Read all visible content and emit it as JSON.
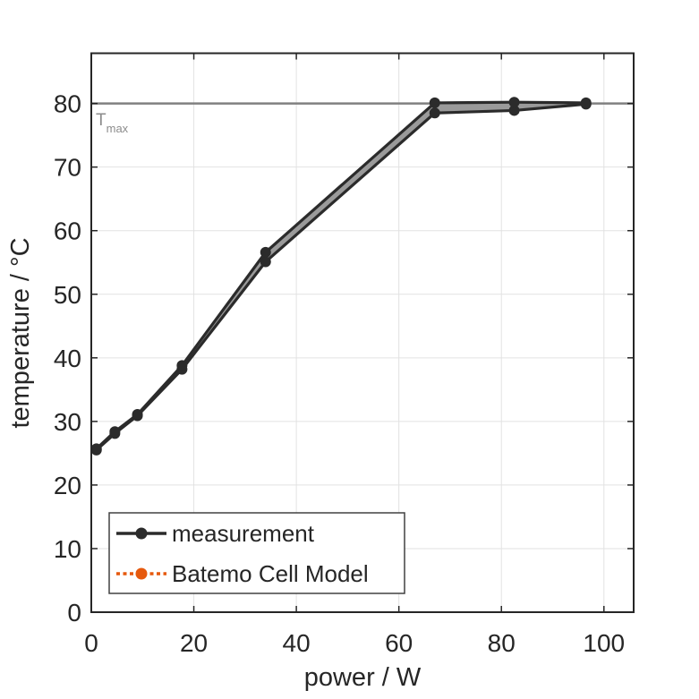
{
  "chart_data": {
    "type": "line",
    "title": "",
    "xlabel": "power / W",
    "ylabel": "temperature / °C",
    "xlim": [
      0,
      105.8
    ],
    "ylim": [
      0,
      87.9
    ],
    "xticks": [
      0,
      20,
      40,
      60,
      80,
      100
    ],
    "yticks": [
      0,
      10,
      20,
      30,
      40,
      50,
      60,
      70,
      80
    ],
    "grid": true,
    "x": [
      1,
      4.6,
      9,
      17.7,
      34,
      67,
      82.5,
      96.5
    ],
    "series": [
      {
        "name": "measurement",
        "values": [
          25.7,
          28.4,
          31.1,
          38.8,
          56.6,
          80.1,
          80.2,
          80.1
        ],
        "color": "#2b2b2b",
        "line": "solid",
        "marker": "circle"
      },
      {
        "name": "Batemo Cell Model",
        "values": [
          25.5,
          28.1,
          30.9,
          38.2,
          55.1,
          78.5,
          78.9,
          79.9
        ],
        "color": "#2b2b2b",
        "line": "solid",
        "marker": "circle"
      }
    ],
    "band_fill": "#9a9a9a",
    "annotation": {
      "label_main": "T",
      "label_sub": "max",
      "value": 80,
      "line_color": "#808080",
      "text_color": "#8c8c8c"
    },
    "legend": {
      "position": "bottom-left",
      "entries": [
        {
          "label": "measurement",
          "color": "#2b2b2b",
          "line": "solid",
          "marker": "circle"
        },
        {
          "label": "Batemo Cell Model",
          "color": "#e6590d",
          "line": "dotted",
          "marker": "circle"
        }
      ]
    },
    "axis_color": "#262626",
    "grid_color": "#e2e2e2",
    "text_color": "#262626"
  }
}
